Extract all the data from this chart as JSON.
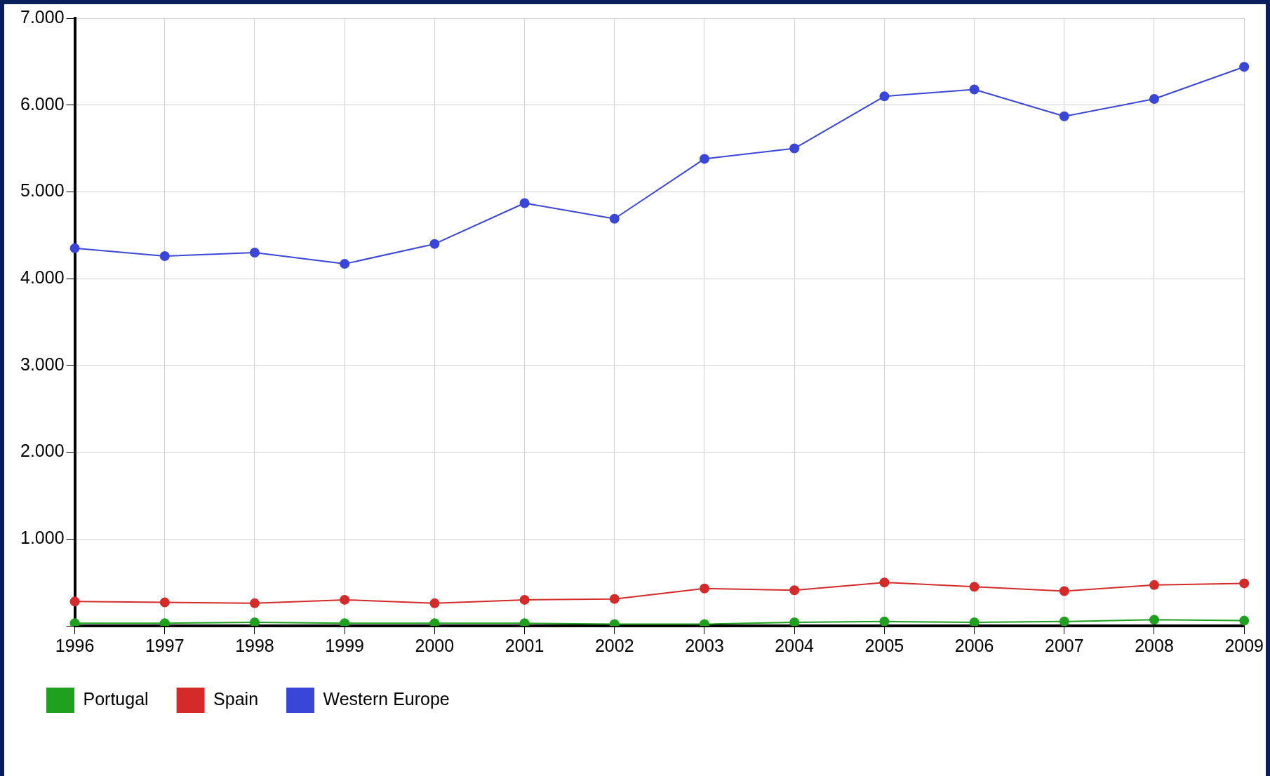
{
  "chart_data": {
    "type": "line",
    "categories": [
      "1996",
      "1997",
      "1998",
      "1999",
      "2000",
      "2001",
      "2002",
      "2003",
      "2004",
      "2005",
      "2006",
      "2007",
      "2008",
      "2009"
    ],
    "series": [
      {
        "name": "Portugal",
        "color": "#1fa01f",
        "values": [
          30,
          30,
          40,
          30,
          30,
          30,
          20,
          20,
          40,
          50,
          40,
          50,
          70,
          60
        ]
      },
      {
        "name": "Spain",
        "color": "#d42a2a",
        "values": [
          280,
          270,
          260,
          300,
          260,
          300,
          310,
          430,
          410,
          500,
          450,
          400,
          470,
          490
        ]
      },
      {
        "name": "Western Europe",
        "color": "#3a46d8",
        "values": [
          4350,
          4260,
          4300,
          4170,
          4400,
          4870,
          4690,
          5380,
          5500,
          6100,
          6180,
          5870,
          6070,
          6440
        ]
      }
    ],
    "ylim": [
      0,
      7000
    ],
    "yticks": [
      {
        "value": 0,
        "label": null
      },
      {
        "value": 1000,
        "label": "1.000"
      },
      {
        "value": 2000,
        "label": "2.000"
      },
      {
        "value": 3000,
        "label": "3.000"
      },
      {
        "value": 4000,
        "label": "4.000"
      },
      {
        "value": 5000,
        "label": "5.000"
      },
      {
        "value": 6000,
        "label": "6.000"
      },
      {
        "value": 7000,
        "label": "7.000"
      }
    ],
    "grid": true,
    "legend": "bottom left",
    "marker": "circle",
    "line_style": "solid"
  }
}
